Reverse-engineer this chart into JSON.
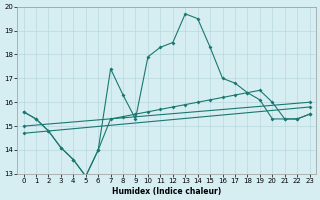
{
  "xlabel": "Humidex (Indice chaleur)",
  "bg_color": "#d6eef2",
  "grid_color": "#b8d8de",
  "line_color": "#1a7870",
  "xlim": [
    0,
    23
  ],
  "ylim": [
    13,
    20
  ],
  "xticks": [
    0,
    1,
    2,
    3,
    4,
    5,
    6,
    7,
    8,
    9,
    10,
    11,
    12,
    13,
    14,
    15,
    16,
    17,
    18,
    19,
    20,
    21,
    22,
    23
  ],
  "yticks": [
    13,
    14,
    15,
    16,
    17,
    18,
    19,
    20
  ],
  "line1_x": [
    0,
    1,
    2,
    3,
    4,
    5,
    6,
    7,
    8,
    9,
    10,
    11,
    12,
    13,
    14,
    15,
    16,
    17,
    18,
    19,
    20,
    21,
    22,
    23
  ],
  "line1_y": [
    15.6,
    15.3,
    14.8,
    14.1,
    13.6,
    12.9,
    14.0,
    17.4,
    16.3,
    15.3,
    17.9,
    18.3,
    18.5,
    19.7,
    19.5,
    18.3,
    17.0,
    16.8,
    16.4,
    16.1,
    15.3,
    15.3,
    15.3,
    15.5
  ],
  "line2_x": [
    0,
    1,
    2,
    3,
    4,
    5,
    6,
    7,
    8,
    9,
    10,
    11,
    12,
    13,
    14,
    15,
    16,
    17,
    18,
    19,
    20,
    21,
    22,
    23
  ],
  "line2_y": [
    15.6,
    15.3,
    14.8,
    14.1,
    13.6,
    12.9,
    14.0,
    15.3,
    15.4,
    15.5,
    15.6,
    15.7,
    15.8,
    15.9,
    16.0,
    16.1,
    16.2,
    16.3,
    16.4,
    16.5,
    16.0,
    15.3,
    15.3,
    15.5
  ],
  "line3_x": [
    0,
    23
  ],
  "line3_y": [
    15.0,
    16.0
  ],
  "line4_x": [
    0,
    23
  ],
  "line4_y": [
    14.7,
    15.8
  ]
}
